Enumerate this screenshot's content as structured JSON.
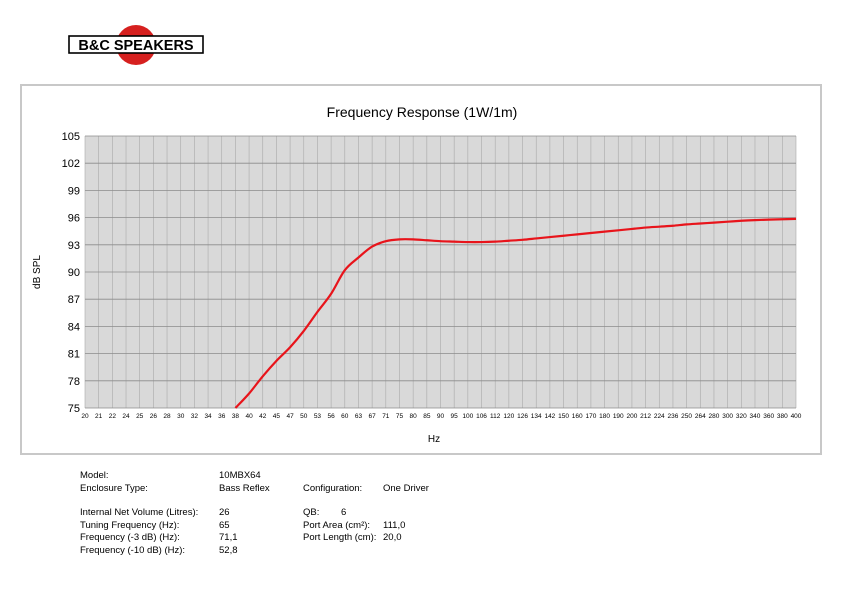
{
  "brand": {
    "logo_text": "B&C SPEAKERS"
  },
  "chart_data": {
    "type": "line",
    "title": "Frequency Response (1W/1m)",
    "xlabel": "Hz",
    "ylabel": "dB SPL",
    "ylim": [
      75,
      105
    ],
    "y_ticks": [
      "105",
      "102",
      "99",
      "96",
      "93",
      "90",
      "87",
      "84",
      "81",
      "78",
      "75"
    ],
    "x_ticks": [
      "20",
      "21",
      "22",
      "24",
      "25",
      "26",
      "28",
      "30",
      "32",
      "34",
      "36",
      "38",
      "40",
      "42",
      "45",
      "47",
      "50",
      "53",
      "56",
      "60",
      "63",
      "67",
      "71",
      "75",
      "80",
      "85",
      "90",
      "95",
      "100",
      "106",
      "112",
      "120",
      "126",
      "134",
      "142",
      "150",
      "160",
      "170",
      "180",
      "190",
      "200",
      "212",
      "224",
      "236",
      "250",
      "264",
      "280",
      "300",
      "320",
      "340",
      "360",
      "380",
      "400"
    ],
    "grid": true,
    "series": [
      {
        "color": "#e8141b",
        "x": [
          "38",
          "40",
          "42",
          "45",
          "47",
          "50",
          "53",
          "56",
          "60",
          "63",
          "67",
          "71",
          "75",
          "80",
          "85",
          "90",
          "95",
          "100",
          "106",
          "112",
          "120",
          "126",
          "134",
          "142",
          "150",
          "160",
          "170",
          "180",
          "190",
          "200",
          "212",
          "224",
          "236",
          "250",
          "264",
          "280",
          "300",
          "320",
          "340",
          "360",
          "380",
          "400"
        ],
        "y": [
          75,
          76.6,
          78.5,
          80.2,
          81.7,
          83.5,
          85.6,
          87.6,
          90.2,
          91.6,
          92.8,
          93.4,
          93.6,
          93.6,
          93.5,
          93.4,
          93.35,
          93.3,
          93.3,
          93.35,
          93.45,
          93.55,
          93.7,
          93.85,
          94.0,
          94.15,
          94.3,
          94.45,
          94.6,
          94.75,
          94.9,
          95.0,
          95.1,
          95.25,
          95.35,
          95.45,
          95.55,
          95.65,
          95.72,
          95.78,
          95.82,
          95.86
        ]
      }
    ]
  },
  "specs": {
    "model": {
      "label": "Model:",
      "value": "10MBX64"
    },
    "enclosure": {
      "label": "Enclosure Type:",
      "value": "Bass Reflex"
    },
    "configuration": {
      "label": "Configuration:",
      "value": "One Driver"
    },
    "net_volume": {
      "label": "Internal Net Volume (Litres):",
      "value": "26"
    },
    "qb": {
      "label": "QB:",
      "value": "6"
    },
    "tuning": {
      "label": "Tuning Frequency (Hz):",
      "value": "65"
    },
    "port_area": {
      "label": "Port Area (cm²):",
      "value": "111,0"
    },
    "f3": {
      "label": "Frequency (-3 dB) (Hz):",
      "value": "71,1"
    },
    "port_length": {
      "label": "Port Length (cm):",
      "value": "20,0"
    },
    "f10": {
      "label": "Frequency (-10 dB) (Hz):",
      "value": "52,8"
    }
  }
}
